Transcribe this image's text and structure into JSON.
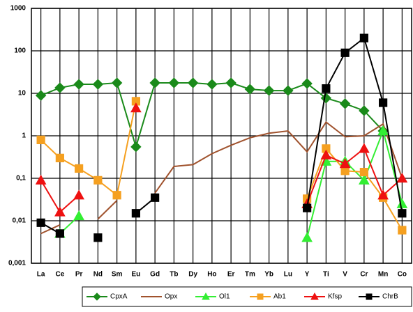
{
  "chart_data": {
    "type": "line",
    "log_scale": true,
    "grid": true,
    "legend": "bottom",
    "categories": [
      "La",
      "Ce",
      "Pr",
      "Nd",
      "Sm",
      "Eu",
      "Gd",
      "Tb",
      "Dy",
      "Ho",
      "Er",
      "Tm",
      "Yb",
      "Lu",
      "Y",
      "Ti",
      "V",
      "Cr",
      "Mn",
      "Co"
    ],
    "ylim": [
      0.001,
      1000
    ],
    "yticks": [
      {
        "value": 0.001,
        "label": "0,001"
      },
      {
        "value": 0.01,
        "label": "0,01"
      },
      {
        "value": 0.1,
        "label": "0,1"
      },
      1,
      10,
      100,
      1000
    ],
    "series": [
      {
        "name": "CpxA",
        "color": "#1a8a1a",
        "marker": "diamond",
        "values": [
          8.9,
          13.5,
          16.3,
          16.3,
          17.6,
          0.55,
          17.6,
          17.6,
          17.6,
          16.3,
          17.6,
          12.5,
          11.6,
          11.6,
          17,
          7.7,
          5.7,
          3.9,
          1.3,
          null
        ]
      },
      {
        "name": "Opx",
        "color": "#a0522d",
        "marker": "none",
        "values": [
          0.005,
          0.008,
          null,
          0.011,
          0.03,
          null,
          0.045,
          0.19,
          0.21,
          0.38,
          0.6,
          0.9,
          1.15,
          1.3,
          0.42,
          2.1,
          0.95,
          1.0,
          1.9,
          0.1
        ]
      },
      {
        "name": "Ol1",
        "color": "#33ee33",
        "marker": "triangle",
        "values": [
          null,
          0.005,
          0.013,
          null,
          null,
          null,
          null,
          null,
          null,
          null,
          null,
          null,
          null,
          null,
          0.004,
          0.25,
          0.25,
          0.09,
          1.3,
          0.025
        ]
      },
      {
        "name": "Ab1",
        "color": "#f5a020",
        "marker": "square",
        "values": [
          0.8,
          0.3,
          0.17,
          0.09,
          0.04,
          6.5,
          null,
          null,
          null,
          null,
          null,
          null,
          null,
          null,
          0.033,
          0.5,
          0.15,
          0.14,
          0.035,
          0.006
        ]
      },
      {
        "name": "Kfsp",
        "color": "#ee1111",
        "marker": "triangle",
        "values": [
          0.09,
          0.016,
          0.04,
          null,
          null,
          4.5,
          null,
          null,
          null,
          null,
          null,
          null,
          null,
          null,
          0.025,
          0.35,
          0.22,
          0.5,
          0.04,
          0.1
        ]
      },
      {
        "name": "ChrB",
        "color": "#000000",
        "marker": "square",
        "values": [
          0.009,
          0.005,
          null,
          0.004,
          null,
          0.015,
          0.035,
          null,
          null,
          null,
          null,
          null,
          null,
          null,
          0.02,
          13,
          90,
          200,
          6,
          0.015
        ]
      }
    ]
  }
}
